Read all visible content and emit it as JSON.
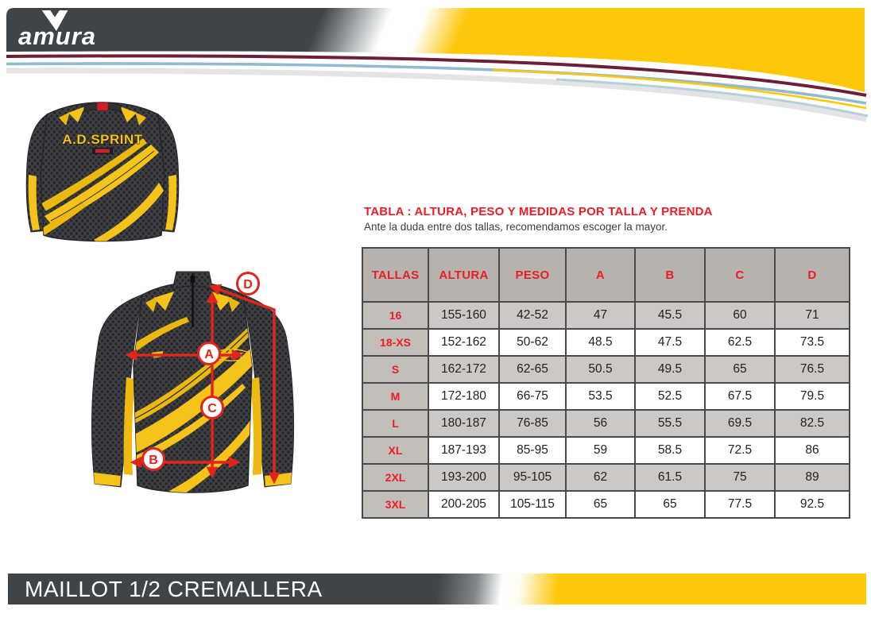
{
  "brand": {
    "logo_text": "amura"
  },
  "product": {
    "name": "MAILLOT 1/2 CREMALLERA"
  },
  "jersey": {
    "back_text": "A.D.SPRINT",
    "front_badge": "SPRINT",
    "measures": [
      "A",
      "B",
      "C",
      "D"
    ]
  },
  "size_table": {
    "title": "TABLA :  ALTURA, PESO Y MEDIDAS POR TALLA Y PRENDA",
    "subtitle": "Ante la duda entre dos tallas, recomendamos escoger la mayor.",
    "columns": [
      "TALLAS",
      "ALTURA",
      "PESO",
      "A",
      "B",
      "C",
      "D"
    ],
    "rows": [
      [
        "16",
        "155-160",
        "42-52",
        "47",
        "45.5",
        "60",
        "71"
      ],
      [
        "18-XS",
        "152-162",
        "50-62",
        "48.5",
        "47.5",
        "62.5",
        "73.5"
      ],
      [
        "S",
        "162-172",
        "62-65",
        "50.5",
        "49.5",
        "65",
        "76.5"
      ],
      [
        "M",
        "172-180",
        "66-75",
        "53.5",
        "52.5",
        "67.5",
        "79.5"
      ],
      [
        "L",
        "180-187",
        "76-85",
        "56",
        "55.5",
        "69.5",
        "82.5"
      ],
      [
        "XL",
        "187-193",
        "85-95",
        "59",
        "58.5",
        "72.5",
        "86"
      ],
      [
        "2XL",
        "193-200",
        "95-105",
        "62",
        "61.5",
        "75",
        "89"
      ],
      [
        "3XL",
        "200-205",
        "105-115",
        "65",
        "65",
        "77.5",
        "92.5"
      ]
    ]
  },
  "colors": {
    "brand_yellow": "#fdc70a",
    "brand_dark": "#3e4447",
    "accent_red": "#ec1c24",
    "stripe_maroon": "#6d1f35",
    "stripe_blue": "#8fbacf"
  }
}
